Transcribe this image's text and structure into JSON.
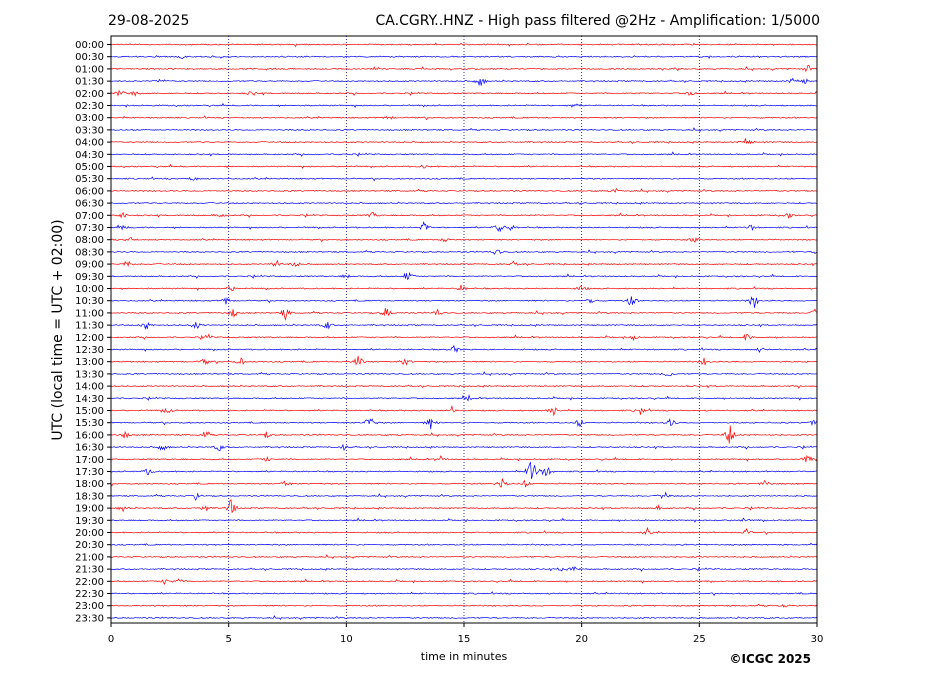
{
  "header": {
    "date": "29-08-2025",
    "title": "CA.CGRY..HNZ - High pass filtered @2Hz - Amplification: 1/5000"
  },
  "footer": {
    "copyright": "©ICGC 2025"
  },
  "chart_data": {
    "type": "line",
    "title": "CA.CGRY..HNZ - High pass filtered @2Hz - Amplification: 1/5000",
    "xlabel": "time in minutes",
    "ylabel": "UTC (local time = UTC + 02:00)",
    "xlim": [
      0,
      30
    ],
    "x_ticks": [
      "0",
      "5",
      "10",
      "15",
      "20",
      "25",
      "30"
    ],
    "grid": "vertical dotted lines at 5-minute intervals",
    "row_colors": [
      "#ff0000",
      "#0000ff"
    ],
    "rows": [
      {
        "label": "00:00",
        "events": []
      },
      {
        "label": "00:30",
        "events": [
          [
            3.0,
            0.15
          ]
        ]
      },
      {
        "label": "01:00",
        "events": [
          [
            29.6,
            0.45
          ]
        ]
      },
      {
        "label": "01:30",
        "events": [
          [
            2.1,
            0.35
          ],
          [
            15.7,
            0.8
          ],
          [
            29.0,
            0.4
          ],
          [
            29.5,
            0.3
          ]
        ]
      },
      {
        "label": "02:00",
        "events": [
          [
            0.4,
            0.6
          ],
          [
            1.0,
            0.3
          ],
          [
            6.0,
            0.35
          ],
          [
            24.6,
            0.4
          ]
        ]
      },
      {
        "label": "02:30",
        "events": [
          [
            19.7,
            0.4
          ]
        ]
      },
      {
        "label": "03:00",
        "events": [
          [
            11.8,
            0.3
          ]
        ]
      },
      {
        "label": "03:30",
        "events": []
      },
      {
        "label": "04:00",
        "events": [
          [
            27.0,
            0.6
          ]
        ]
      },
      {
        "label": "04:30",
        "events": []
      },
      {
        "label": "05:00",
        "events": [
          [
            13.3,
            0.25
          ]
        ]
      },
      {
        "label": "05:30",
        "events": [
          [
            3.5,
            0.35
          ]
        ]
      },
      {
        "label": "06:00",
        "events": [
          [
            21.4,
            0.4
          ]
        ]
      },
      {
        "label": "06:30",
        "events": []
      },
      {
        "label": "07:00",
        "events": [
          [
            0.5,
            0.45
          ],
          [
            4.6,
            0.4
          ],
          [
            11.1,
            0.5
          ],
          [
            28.8,
            0.3
          ]
        ]
      },
      {
        "label": "07:30",
        "events": [
          [
            0.5,
            0.3
          ],
          [
            13.3,
            0.7
          ],
          [
            16.5,
            0.7
          ],
          [
            17.0,
            0.4
          ],
          [
            27.2,
            0.4
          ]
        ]
      },
      {
        "label": "08:00",
        "events": [
          [
            0.8,
            0.45
          ],
          [
            24.8,
            0.4
          ],
          [
            14.2,
            0.3
          ]
        ]
      },
      {
        "label": "08:30",
        "events": [
          [
            16.4,
            0.75
          ],
          [
            30.0,
            0.3
          ]
        ]
      },
      {
        "label": "09:00",
        "events": [
          [
            0.7,
            0.5
          ],
          [
            7.0,
            0.6
          ],
          [
            7.8,
            0.5
          ],
          [
            17.1,
            0.45
          ]
        ]
      },
      {
        "label": "09:30",
        "events": [
          [
            12.6,
            0.7
          ],
          [
            10.0,
            0.35
          ]
        ]
      },
      {
        "label": "10:00",
        "events": [
          [
            5.1,
            0.4
          ],
          [
            14.9,
            0.5
          ],
          [
            20.0,
            0.45
          ]
        ]
      },
      {
        "label": "10:30",
        "events": [
          [
            4.9,
            0.5
          ],
          [
            22.1,
            0.8
          ],
          [
            27.3,
            1.2
          ],
          [
            20.4,
            0.5
          ]
        ]
      },
      {
        "label": "11:00",
        "events": [
          [
            5.2,
            0.6
          ],
          [
            7.4,
            0.8
          ],
          [
            11.7,
            0.8
          ],
          [
            13.9,
            0.5
          ],
          [
            29.9,
            0.4
          ]
        ]
      },
      {
        "label": "11:30",
        "events": [
          [
            1.5,
            0.6
          ],
          [
            3.6,
            0.6
          ],
          [
            9.2,
            0.6
          ]
        ]
      },
      {
        "label": "12:00",
        "events": [
          [
            4.1,
            0.45
          ],
          [
            27.0,
            0.5
          ],
          [
            22.2,
            0.4
          ]
        ]
      },
      {
        "label": "12:30",
        "events": [
          [
            14.6,
            0.5
          ],
          [
            27.6,
            0.35
          ]
        ]
      },
      {
        "label": "13:00",
        "events": [
          [
            4.0,
            0.5
          ],
          [
            5.5,
            0.5
          ],
          [
            10.5,
            0.9
          ],
          [
            12.5,
            0.6
          ],
          [
            25.2,
            0.5
          ]
        ]
      },
      {
        "label": "13:30",
        "events": [
          [
            23.7,
            0.45
          ]
        ]
      },
      {
        "label": "14:00",
        "events": []
      },
      {
        "label": "14:30",
        "events": [
          [
            15.2,
            0.3
          ]
        ]
      },
      {
        "label": "15:00",
        "events": [
          [
            2.4,
            0.45
          ],
          [
            14.5,
            0.5
          ],
          [
            18.8,
            0.6
          ],
          [
            22.5,
            0.5
          ]
        ]
      },
      {
        "label": "15:30",
        "events": [
          [
            11.0,
            1.1
          ],
          [
            13.6,
            0.8
          ],
          [
            19.9,
            0.6
          ],
          [
            23.8,
            0.6
          ],
          [
            29.9,
            0.5
          ]
        ]
      },
      {
        "label": "16:00",
        "events": [
          [
            0.6,
            0.5
          ],
          [
            4.0,
            0.6
          ],
          [
            26.3,
            1.4
          ],
          [
            6.6,
            0.4
          ]
        ]
      },
      {
        "label": "16:30",
        "events": [
          [
            2.2,
            0.55
          ],
          [
            4.6,
            0.5
          ],
          [
            9.9,
            0.4
          ]
        ]
      },
      {
        "label": "17:00",
        "events": [
          [
            6.6,
            0.35
          ],
          [
            29.6,
            0.6
          ],
          [
            14.0,
            0.4
          ]
        ]
      },
      {
        "label": "17:30",
        "events": [
          [
            1.6,
            0.5
          ],
          [
            17.9,
            2.4
          ],
          [
            18.5,
            0.9
          ]
        ]
      },
      {
        "label": "18:00",
        "events": [
          [
            7.4,
            0.55
          ],
          [
            16.6,
            0.9
          ],
          [
            17.6,
            0.5
          ],
          [
            27.8,
            0.5
          ]
        ]
      },
      {
        "label": "18:30",
        "events": [
          [
            3.6,
            0.45
          ],
          [
            23.5,
            0.6
          ]
        ]
      },
      {
        "label": "19:00",
        "events": [
          [
            0.5,
            0.4
          ],
          [
            5.1,
            1.3
          ],
          [
            4.0,
            0.5
          ],
          [
            23.3,
            0.3
          ]
        ]
      },
      {
        "label": "19:30",
        "events": [
          [
            26.9,
            0.25
          ]
        ]
      },
      {
        "label": "20:00",
        "events": [
          [
            22.8,
            0.4
          ],
          [
            27.0,
            0.35
          ]
        ]
      },
      {
        "label": "20:30",
        "events": []
      },
      {
        "label": "21:00",
        "events": []
      },
      {
        "label": "21:30",
        "events": [
          [
            19.2,
            0.4
          ],
          [
            19.7,
            0.45
          ]
        ]
      },
      {
        "label": "22:00",
        "events": [
          [
            2.3,
            0.35
          ],
          [
            2.9,
            0.3
          ]
        ]
      },
      {
        "label": "22:30",
        "events": []
      },
      {
        "label": "23:00",
        "events": [
          [
            28.6,
            0.2
          ]
        ]
      },
      {
        "label": "23:30",
        "events": []
      }
    ]
  }
}
